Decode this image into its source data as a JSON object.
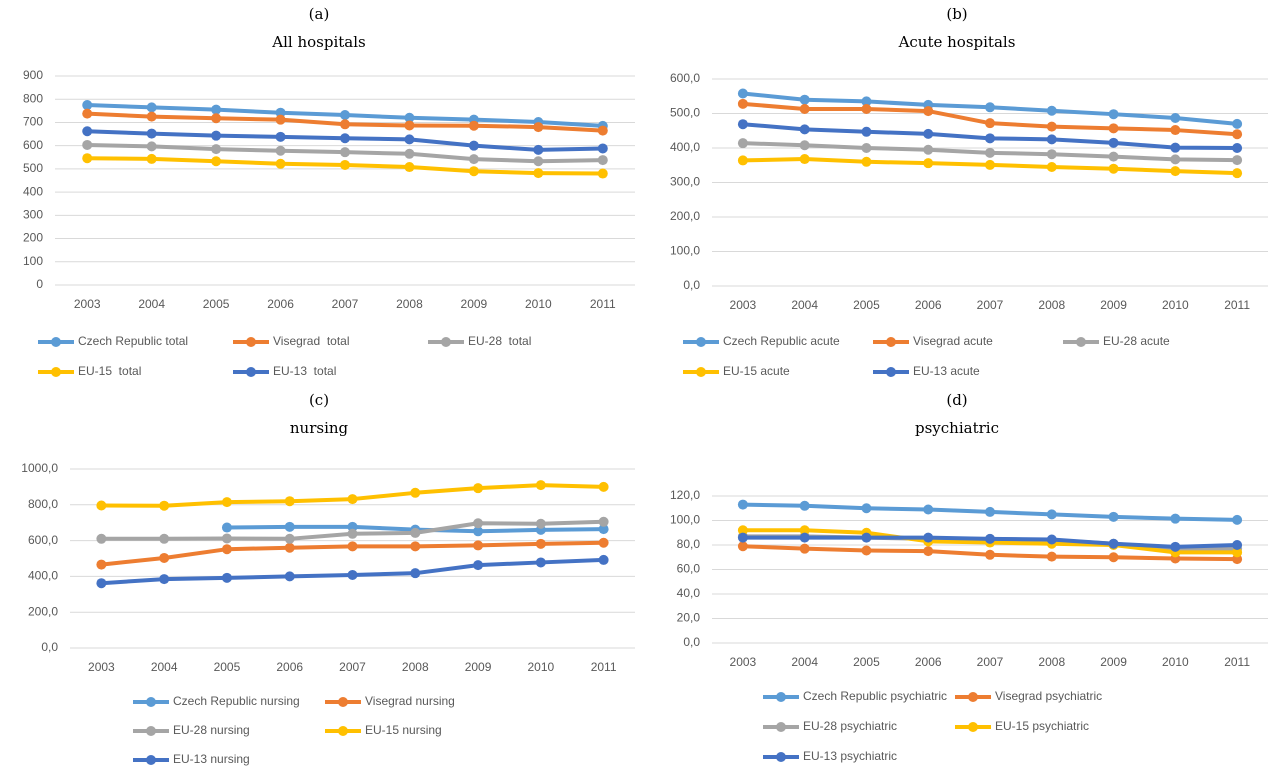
{
  "chart_data": [
    {
      "type": "line",
      "label": "(a)",
      "title": "All hospitals",
      "categories": [
        "2003",
        "2004",
        "2005",
        "2006",
        "2007",
        "2008",
        "2009",
        "2010",
        "2011"
      ],
      "ylim": [
        0,
        900
      ],
      "yticks": [
        0,
        100,
        200,
        300,
        400,
        500,
        600,
        700,
        800,
        900
      ],
      "grid": true,
      "series": [
        {
          "name": "Czech Republic total",
          "color": "#5b9bd5",
          "values": [
            775,
            765,
            755,
            742,
            732,
            720,
            712,
            702,
            685
          ]
        },
        {
          "name": "Visegrad  total",
          "color": "#ed7d31",
          "values": [
            738,
            725,
            718,
            712,
            692,
            687,
            686,
            680,
            665
          ]
        },
        {
          "name": "EU-28  total",
          "color": "#a5a5a5",
          "values": [
            603,
            597,
            585,
            578,
            572,
            565,
            542,
            533,
            538
          ]
        },
        {
          "name": "EU-15  total",
          "color": "#ffc000",
          "values": [
            546,
            543,
            533,
            522,
            517,
            508,
            490,
            482,
            480
          ]
        },
        {
          "name": "EU-13  total",
          "color": "#4472c4",
          "values": [
            662,
            652,
            643,
            638,
            632,
            627,
            600,
            582,
            588
          ]
        }
      ]
    },
    {
      "type": "line",
      "label": "(b)",
      "title": "Acute hospitals",
      "categories": [
        "2003",
        "2004",
        "2005",
        "2006",
        "2007",
        "2008",
        "2009",
        "2010",
        "2011"
      ],
      "ylim": [
        0,
        600
      ],
      "yticks": [
        {
          "value": 0,
          "label": "0,0"
        },
        {
          "value": 100,
          "label": "100,0"
        },
        {
          "value": 200,
          "label": "200,0"
        },
        {
          "value": 300,
          "label": "300,0"
        },
        {
          "value": 400,
          "label": "400,0"
        },
        {
          "value": 500,
          "label": "500,0"
        },
        {
          "value": 600,
          "label": "600,0"
        }
      ],
      "grid": true,
      "series": [
        {
          "name": "Czech Republic acute",
          "color": "#5b9bd5",
          "values": [
            558,
            540,
            535,
            525,
            518,
            508,
            498,
            487,
            470
          ]
        },
        {
          "name": "Visegrad acute",
          "color": "#ed7d31",
          "values": [
            528,
            513,
            513,
            507,
            472,
            462,
            457,
            452,
            440
          ]
        },
        {
          "name": "EU-28 acute",
          "color": "#a5a5a5",
          "values": [
            414,
            408,
            400,
            395,
            386,
            382,
            375,
            367,
            365
          ]
        },
        {
          "name": "EU-15 acute",
          "color": "#ffc000",
          "values": [
            364,
            368,
            360,
            356,
            351,
            345,
            340,
            333,
            327
          ]
        },
        {
          "name": "EU-13 acute",
          "color": "#4472c4",
          "values": [
            469,
            454,
            447,
            441,
            428,
            425,
            415,
            401,
            400
          ]
        }
      ]
    },
    {
      "type": "line",
      "label": "(c)",
      "title": "nursing",
      "categories": [
        "2003",
        "2004",
        "2005",
        "2006",
        "2007",
        "2008",
        "2009",
        "2010",
        "2011"
      ],
      "ylim": [
        0,
        1000
      ],
      "yticks": [
        {
          "value": 0,
          "label": "0,0"
        },
        {
          "value": 200,
          "label": "200,0"
        },
        {
          "value": 400,
          "label": "400,0"
        },
        {
          "value": 600,
          "label": "600,0"
        },
        {
          "value": 800,
          "label": "800,0"
        },
        {
          "value": 1000,
          "label": "1000,0"
        }
      ],
      "grid": true,
      "series": [
        {
          "name": "Czech Republic nursing",
          "color": "#5b9bd5",
          "values": [
            null,
            null,
            673,
            677,
            677,
            661,
            652,
            660,
            664
          ]
        },
        {
          "name": "Visegrad nursing",
          "color": "#ed7d31",
          "values": [
            466,
            503,
            552,
            560,
            568,
            568,
            573,
            582,
            588
          ]
        },
        {
          "name": "EU-28 nursing",
          "color": "#a5a5a5",
          "values": [
            610,
            610,
            612,
            610,
            638,
            643,
            697,
            694,
            705
          ]
        },
        {
          "name": "EU-15 nursing",
          "color": "#ffc000",
          "values": [
            796,
            795,
            815,
            820,
            832,
            867,
            893,
            910,
            900
          ]
        },
        {
          "name": "EU-13 nursing",
          "color": "#4472c4",
          "values": [
            362,
            385,
            392,
            400,
            408,
            418,
            463,
            478,
            492
          ]
        }
      ]
    },
    {
      "type": "line",
      "label": "(d)",
      "title": "psychiatric",
      "categories": [
        "2003",
        "2004",
        "2005",
        "2006",
        "2007",
        "2008",
        "2009",
        "2010",
        "2011"
      ],
      "ylim": [
        0,
        120
      ],
      "yticks": [
        {
          "value": 0,
          "label": "0,0"
        },
        {
          "value": 20,
          "label": "20,0"
        },
        {
          "value": 40,
          "label": "40,0"
        },
        {
          "value": 60,
          "label": "60,0"
        },
        {
          "value": 80,
          "label": "80,0"
        },
        {
          "value": 100,
          "label": "100,0"
        },
        {
          "value": 120,
          "label": "120,0"
        }
      ],
      "grid": true,
      "series": [
        {
          "name": "Czech Republic psychiatric",
          "color": "#5b9bd5",
          "values": [
            113,
            112,
            110,
            109,
            107,
            105,
            103,
            101.5,
            100.5
          ]
        },
        {
          "name": "Visegrad psychiatric",
          "color": "#ed7d31",
          "values": [
            79,
            77,
            75.5,
            75,
            72,
            70.5,
            70,
            69,
            68.5
          ]
        },
        {
          "name": "EU-28 psychiatric",
          "color": "#a5a5a5",
          "values": [
            87,
            87,
            86,
            85,
            85,
            84,
            81,
            77,
            77
          ]
        },
        {
          "name": "EU-15 psychiatric",
          "color": "#ffc000",
          "values": [
            92,
            92,
            90,
            83,
            82,
            81,
            80,
            74,
            74
          ]
        },
        {
          "name": "EU-13 psychiatric",
          "color": "#4472c4",
          "values": [
            86,
            86,
            86,
            86,
            85,
            84.5,
            81,
            78.5,
            80
          ]
        }
      ]
    }
  ]
}
